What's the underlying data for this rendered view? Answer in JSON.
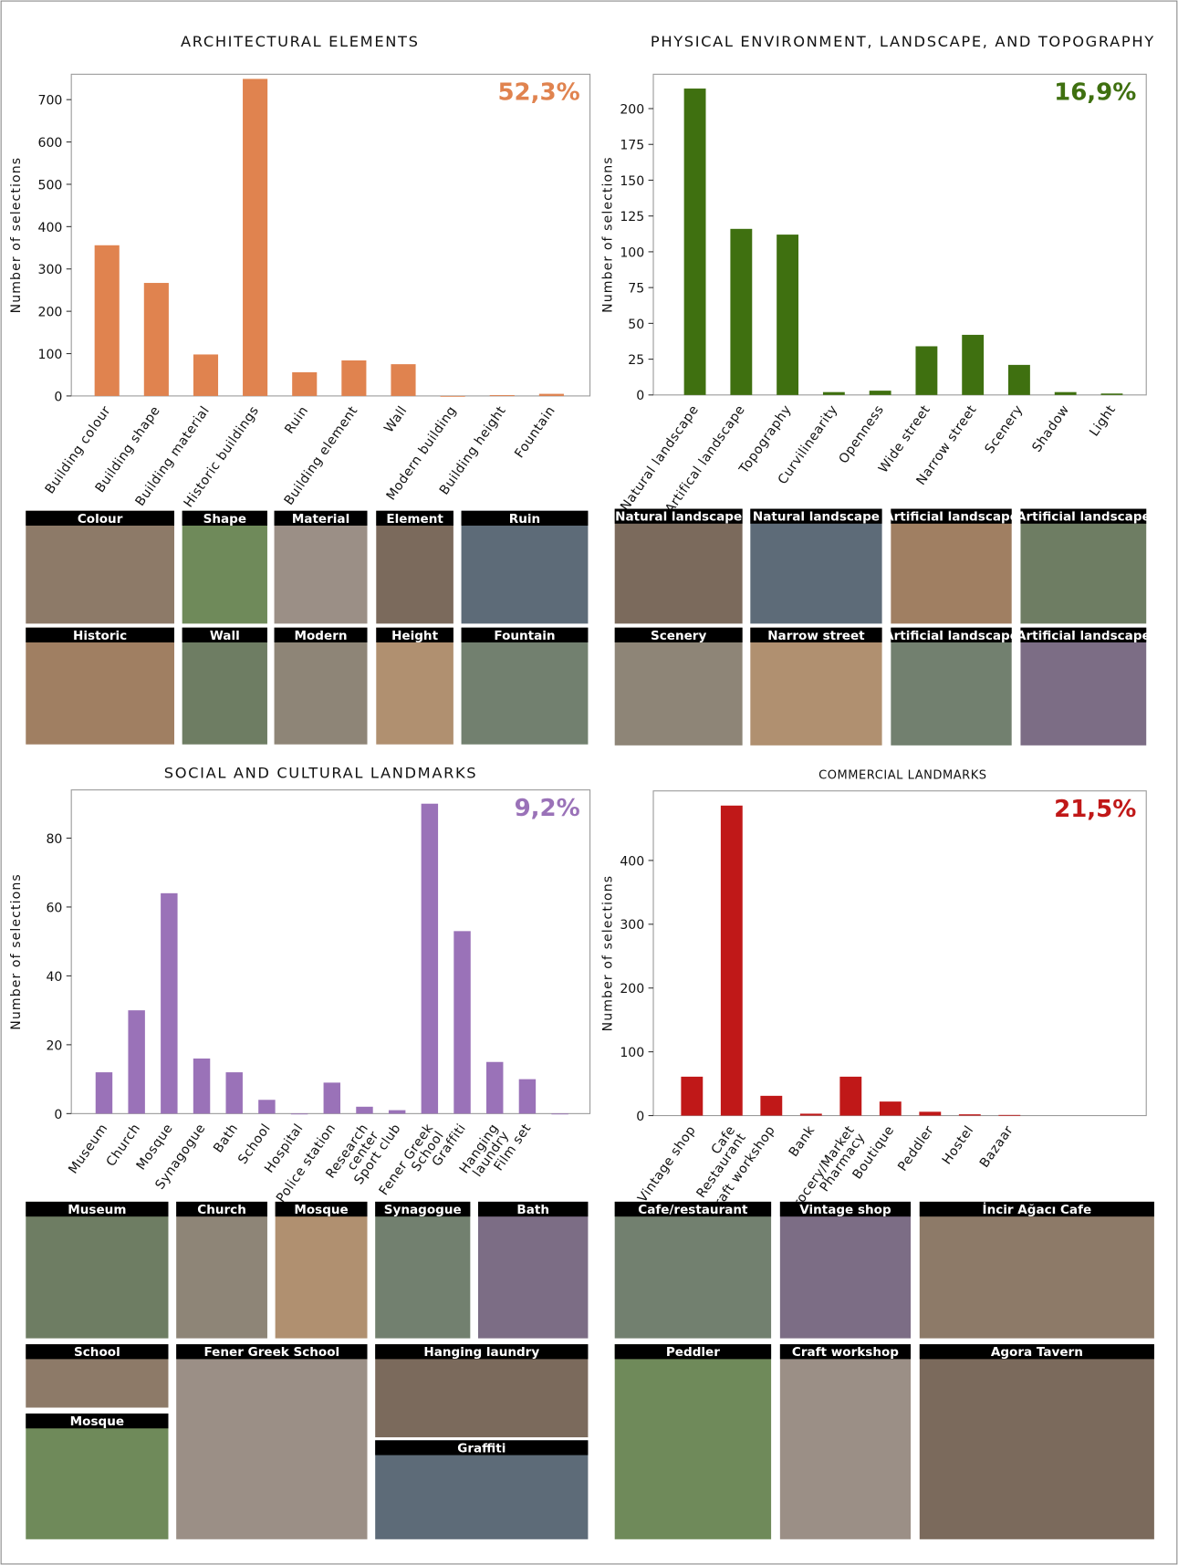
{
  "chart_data": [
    {
      "type": "bar",
      "title": "ARCHITECTURAL ELEMENTS",
      "y_label": "Number of selections",
      "annotation": "52,3%",
      "color": "#e0834f",
      "categories": [
        "Building colour",
        "Building shape",
        "Building material",
        "Historic buildings",
        "Ruin",
        "Building element",
        "Wall",
        "Modern building",
        "Building height",
        "Fountain"
      ],
      "values": [
        356,
        267,
        98,
        749,
        56,
        84,
        75,
        0,
        2,
        5
      ],
      "ylim": [
        0,
        760
      ],
      "yticks": [
        0,
        100,
        200,
        300,
        400,
        500,
        600,
        700
      ]
    },
    {
      "type": "bar",
      "title": "PHYSICAL ENVIRONMENT, LANDSCAPE, AND TOPOGRAPHY",
      "y_label": "Number  of  selections",
      "annotation": "16,9%",
      "color": "#3f7010",
      "categories": [
        "Natural landscape",
        "Artifical landscape",
        "Topography",
        "Curvilinearity",
        "Openness",
        "Wide street",
        "Narrow street",
        "Scenery",
        "Shadow",
        "Light"
      ],
      "values": [
        214,
        116,
        112,
        2,
        3,
        34,
        42,
        21,
        2,
        1
      ],
      "ylim": [
        0,
        224
      ],
      "yticks": [
        0,
        25,
        50,
        75,
        100,
        125,
        150,
        175,
        200
      ]
    },
    {
      "type": "bar",
      "title": "SOCIAL AND CULTURAL LANDMARKS",
      "y_label": "Number  of  selections",
      "annotation": "9,2%",
      "color": "#9a72b8",
      "categories": [
        "Museum",
        "Church",
        "Mosque",
        "Synagogue",
        "Bath",
        "School",
        "Hospital",
        "Police station",
        "Research\ncenter",
        "Sport club",
        "Fener Greek\nSchool",
        "Graffiti",
        "Hanging\nlaundry",
        "Film set",
        null
      ],
      "values": [
        12,
        30,
        64,
        16,
        12,
        4,
        0,
        9,
        2,
        1,
        90,
        53,
        15,
        10,
        0
      ],
      "ylim": [
        0,
        94
      ],
      "yticks": [
        0,
        20,
        40,
        60,
        80
      ]
    },
    {
      "type": "bar",
      "title": "COMMERCIAL LANDMARKS",
      "y_label": "Number  of  selections",
      "annotation": "21,5%",
      "color": "#c01818",
      "categories": [
        "Vintage shop",
        "Cafe\nRestaurant",
        "Craft workshop",
        "Bank",
        "Grocery/Market\nPharmacy",
        "Boutique",
        "Peddler",
        "Hostel",
        "Bazaar"
      ],
      "values": [
        61,
        486,
        31,
        3,
        61,
        22,
        6,
        2,
        1
      ],
      "ylim": [
        0,
        509
      ],
      "yticks": [
        0,
        100,
        200,
        300,
        400
      ]
    }
  ],
  "photo_groups": [
    [
      "Colour",
      "Shape",
      "Material",
      "Element",
      "Ruin",
      "Historic",
      "Wall",
      "Modern",
      "Height",
      "Fountain"
    ],
    [
      "Natural landscape",
      "Natural landscape",
      "Artificial landscape",
      "Artificial landscape",
      "Scenery",
      "Narrow street",
      "Artificial landscape",
      "Artificial landscape"
    ],
    [
      "Museum",
      "Church",
      "Mosque",
      "Synagogue",
      "Bath",
      "School",
      "Mosque",
      "Fener Greek School",
      "Hanging laundry",
      "Graffiti"
    ],
    [
      "Cafe/restaurant",
      "Vintage shop",
      "İncir Ağacı Cafe",
      "Peddler",
      "Craft workshop",
      "Agora Tavern"
    ]
  ]
}
